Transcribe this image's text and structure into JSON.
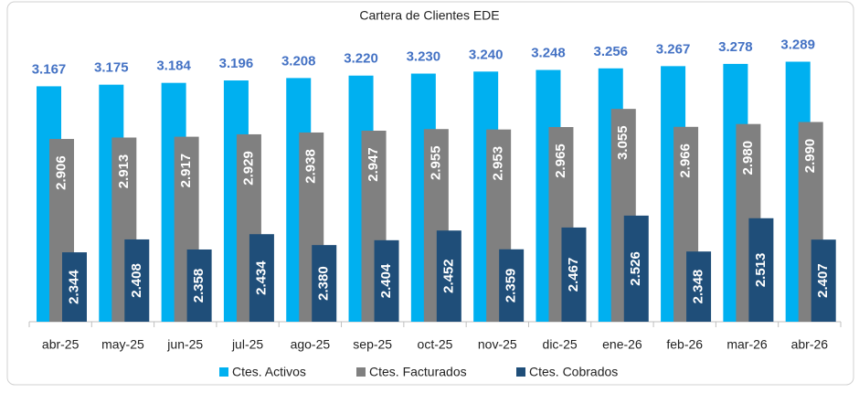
{
  "chart_data": {
    "type": "bar",
    "title": "Cartera de Clientes EDE",
    "categories": [
      "abr-25",
      "may-25",
      "jun-25",
      "jul-25",
      "ago-25",
      "sep-25",
      "oct-25",
      "nov-25",
      "dic-25",
      "ene-26",
      "feb-26",
      "mar-26",
      "abr-26"
    ],
    "series": [
      {
        "name": "Ctes. Activos",
        "color": "#00b0f0",
        "values": [
          3.167,
          3.175,
          3.184,
          3.196,
          3.208,
          3.22,
          3.23,
          3.24,
          3.248,
          3.256,
          3.267,
          3.278,
          3.289
        ],
        "value_labels": [
          "3.167",
          "3.175",
          "3.184",
          "3.196",
          "3.208",
          "3.220",
          "3.230",
          "3.240",
          "3.248",
          "3.256",
          "3.267",
          "3.278",
          "3.289"
        ]
      },
      {
        "name": "Ctes. Facturados",
        "color": "#808080",
        "values": [
          2.906,
          2.913,
          2.917,
          2.929,
          2.938,
          2.947,
          2.955,
          2.953,
          2.965,
          3.055,
          2.966,
          2.98,
          2.99
        ],
        "value_labels": [
          "2.906",
          "2.913",
          "2.917",
          "2.929",
          "2.938",
          "2.947",
          "2.955",
          "2.953",
          "2.965",
          "3.055",
          "2.966",
          "2.980",
          "2.990"
        ]
      },
      {
        "name": "Ctes. Cobrados",
        "color": "#1f4e79",
        "values": [
          2.344,
          2.408,
          2.358,
          2.434,
          2.38,
          2.404,
          2.452,
          2.359,
          2.467,
          2.526,
          2.348,
          2.513,
          2.407
        ],
        "value_labels": [
          "2.344",
          "2.408",
          "2.358",
          "2.434",
          "2.380",
          "2.404",
          "2.452",
          "2.359",
          "2.467",
          "2.526",
          "2.348",
          "2.513",
          "2.407"
        ]
      }
    ],
    "ylim": [
      2,
      3.4
    ],
    "legend": "bottom"
  }
}
